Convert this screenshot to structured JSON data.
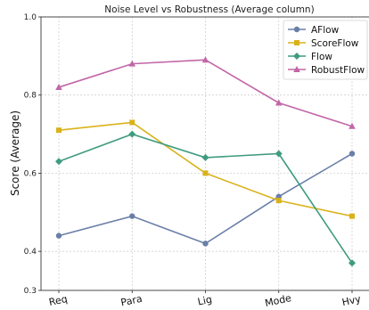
{
  "chart_data": {
    "type": "line",
    "title": "Noise Level vs Robustness (Average column)",
    "xlabel": "",
    "ylabel": "Score (Average)",
    "categories": [
      "Req",
      "Para",
      "Lig",
      "Mode",
      "Hvy"
    ],
    "ylim": [
      0.3,
      1.0
    ],
    "yticks": [
      "0.3",
      "0.4",
      "0.6",
      "0.8",
      "1.0"
    ],
    "grid": true,
    "legend_position": "top-right",
    "series": [
      {
        "name": "AFlow",
        "color": "#6a7fa8",
        "marker": "circle",
        "values": [
          0.44,
          0.49,
          0.42,
          0.54,
          0.65
        ]
      },
      {
        "name": "ScoreFlow",
        "color": "#d9b21a",
        "marker": "square",
        "values": [
          0.71,
          0.73,
          0.6,
          0.53,
          0.49
        ]
      },
      {
        "name": "Flow",
        "color": "#3f9b80",
        "marker": "diamond",
        "values": [
          0.63,
          0.7,
          0.64,
          0.65,
          0.37
        ]
      },
      {
        "name": "RobustFlow",
        "color": "#c266a6",
        "marker": "triangle",
        "values": [
          0.82,
          0.88,
          0.89,
          0.78,
          0.72
        ]
      }
    ]
  }
}
